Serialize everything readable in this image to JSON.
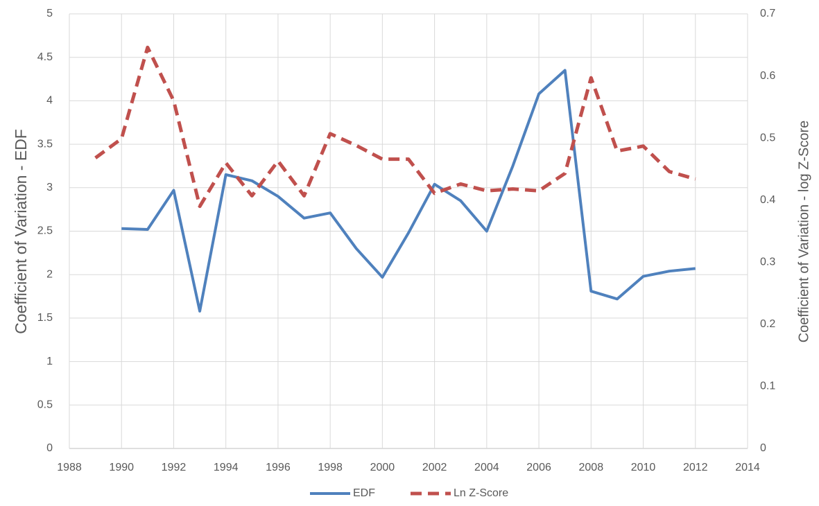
{
  "chart_data": {
    "type": "line",
    "x": [
      1989,
      1990,
      1991,
      1992,
      1993,
      1994,
      1995,
      1996,
      1997,
      1998,
      1999,
      2000,
      2001,
      2002,
      2003,
      2004,
      2005,
      2006,
      2007,
      2008,
      2009,
      2010,
      2011,
      2012
    ],
    "series": [
      {
        "name": "EDF",
        "color": "#4f81bd",
        "dash": false,
        "axis": "y",
        "values": [
          null,
          2.53,
          2.52,
          2.97,
          1.58,
          3.15,
          3.08,
          2.9,
          2.65,
          2.71,
          2.3,
          1.97,
          2.48,
          3.04,
          2.85,
          2.5,
          3.25,
          4.08,
          4.35,
          1.81,
          1.72,
          1.98,
          2.04,
          2.07
        ]
      },
      {
        "name": "Ln Z-Score",
        "color": "#c0504d",
        "dash": true,
        "axis": "y2",
        "values": [
          0.468,
          0.499,
          0.646,
          0.56,
          0.39,
          0.46,
          0.407,
          0.463,
          0.407,
          0.507,
          0.488,
          0.466,
          0.466,
          0.411,
          0.426,
          0.415,
          0.418,
          0.415,
          0.443,
          0.597,
          0.479,
          0.487,
          0.446,
          0.434
        ]
      }
    ],
    "y_label": "Coefficient of Variation - EDF",
    "y2_label": "Coefficient of Variation - log Z-Score",
    "xlim": [
      1988,
      2014
    ],
    "xticks": [
      1988,
      1990,
      1992,
      1994,
      1996,
      1998,
      2000,
      2002,
      2004,
      2006,
      2008,
      2010,
      2012,
      2014
    ],
    "ylim": [
      0,
      5
    ],
    "yticks": [
      0,
      0.5,
      1,
      1.5,
      2,
      2.5,
      3,
      3.5,
      4,
      4.5,
      5
    ],
    "y2lim": [
      0,
      0.7
    ],
    "y2ticks": [
      0,
      0.1,
      0.2,
      0.3,
      0.4,
      0.5,
      0.6,
      0.7
    ],
    "grid": true,
    "legend": "bottom"
  }
}
